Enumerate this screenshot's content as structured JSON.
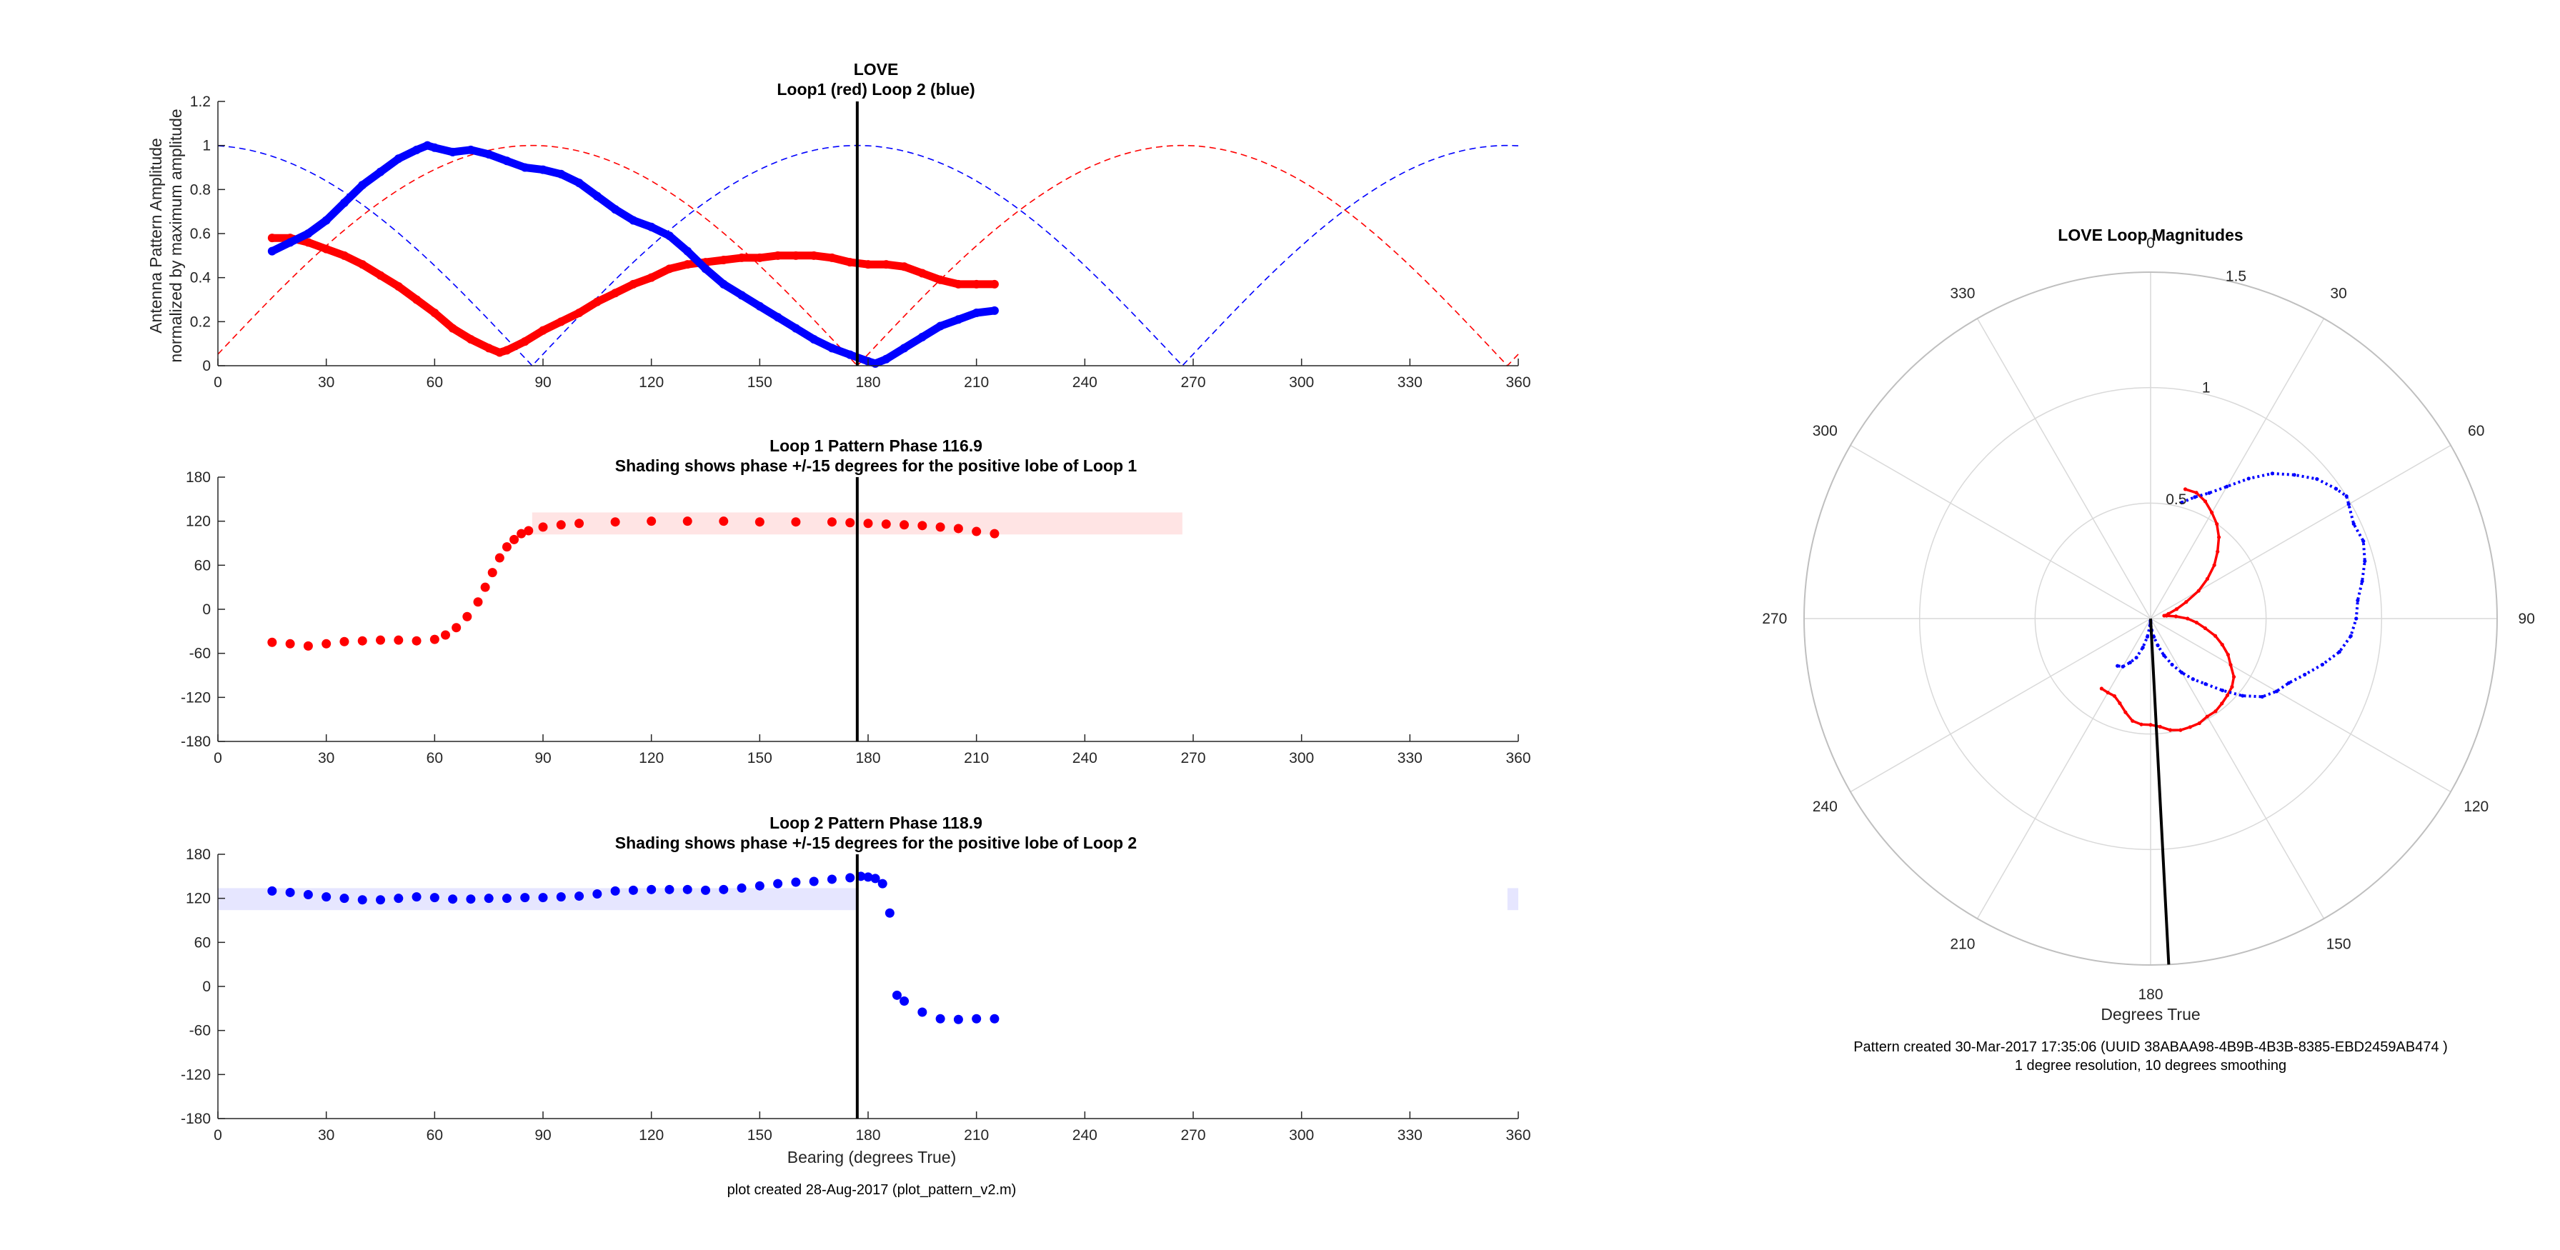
{
  "chart_data": [
    {
      "type": "line",
      "title": "LOVE",
      "subtitle": "Loop1 (red) Loop 2 (blue)",
      "ylabel": [
        "Antenna Pattern Amplitude",
        "normalized by maximum amplitude"
      ],
      "xlabel": "",
      "xlim": [
        0,
        360
      ],
      "ylim": [
        0,
        1.2
      ],
      "xticks": [
        "0",
        "30",
        "60",
        "90",
        "120",
        "150",
        "180",
        "210",
        "240",
        "270",
        "300",
        "330",
        "360"
      ],
      "yticks": [
        "0",
        "0.2",
        "0.4",
        "0.6",
        "0.8",
        "1",
        "1.2"
      ],
      "bearing_marker": 177,
      "ideal_series": [
        {
          "color": "#ff0000",
          "phase": 87
        },
        {
          "color": "#0000ff",
          "phase": 177
        }
      ],
      "series": [
        {
          "color": "#ff0000",
          "x": [
            15,
            20,
            25,
            30,
            35,
            40,
            45,
            50,
            55,
            60,
            65,
            70,
            75,
            78,
            80,
            85,
            90,
            95,
            100,
            105,
            110,
            115,
            120,
            125,
            130,
            135,
            140,
            145,
            150,
            155,
            160,
            165,
            170,
            175,
            180,
            185,
            190,
            195,
            200,
            205,
            210,
            215
          ],
          "y": [
            0.58,
            0.58,
            0.56,
            0.53,
            0.5,
            0.46,
            0.41,
            0.36,
            0.3,
            0.24,
            0.17,
            0.12,
            0.08,
            0.06,
            0.07,
            0.11,
            0.16,
            0.2,
            0.24,
            0.29,
            0.33,
            0.37,
            0.4,
            0.44,
            0.46,
            0.47,
            0.48,
            0.49,
            0.49,
            0.5,
            0.5,
            0.5,
            0.49,
            0.47,
            0.46,
            0.46,
            0.45,
            0.42,
            0.39,
            0.37,
            0.37,
            0.37
          ]
        },
        {
          "color": "#0000ff",
          "x": [
            15,
            20,
            25,
            30,
            35,
            40,
            45,
            50,
            55,
            58,
            60,
            65,
            70,
            75,
            80,
            85,
            90,
            95,
            100,
            105,
            110,
            115,
            120,
            125,
            130,
            135,
            140,
            145,
            150,
            155,
            160,
            165,
            170,
            175,
            180,
            182,
            185,
            190,
            195,
            200,
            205,
            210,
            215
          ],
          "y": [
            0.52,
            0.56,
            0.6,
            0.66,
            0.74,
            0.82,
            0.88,
            0.94,
            0.98,
            1.0,
            0.99,
            0.97,
            0.98,
            0.96,
            0.93,
            0.9,
            0.89,
            0.87,
            0.83,
            0.77,
            0.71,
            0.66,
            0.63,
            0.59,
            0.52,
            0.44,
            0.37,
            0.32,
            0.27,
            0.22,
            0.17,
            0.12,
            0.08,
            0.05,
            0.02,
            0.01,
            0.03,
            0.08,
            0.13,
            0.18,
            0.21,
            0.24,
            0.25
          ]
        }
      ]
    },
    {
      "type": "scatter",
      "title": "Loop 1 Pattern Phase 116.9",
      "subtitle": "Shading shows phase +/-15 degrees for the positive lobe of Loop 1",
      "xlim": [
        0,
        360
      ],
      "ylim": [
        -180,
        180
      ],
      "xticks": [
        "0",
        "30",
        "60",
        "90",
        "120",
        "150",
        "180",
        "210",
        "240",
        "270",
        "300",
        "330",
        "360"
      ],
      "yticks": [
        "-180",
        "-120",
        "-60",
        "0",
        "60",
        "120",
        "180"
      ],
      "bearing_marker": 177,
      "shading": {
        "color": "#ffe4e4",
        "x": [
          87,
          267
        ],
        "y": [
          101.9,
          131.9
        ]
      },
      "series": [
        {
          "color": "#ff0000",
          "x": [
            15,
            20,
            25,
            30,
            35,
            40,
            45,
            50,
            55,
            60,
            63,
            66,
            69,
            72,
            74,
            76,
            78,
            80,
            82,
            84,
            86,
            90,
            95,
            100,
            110,
            120,
            130,
            140,
            150,
            160,
            170,
            175,
            180,
            185,
            190,
            195,
            200,
            205,
            210,
            215
          ],
          "y": [
            -45,
            -47,
            -50,
            -47,
            -44,
            -43,
            -42,
            -42,
            -43,
            -41,
            -35,
            -25,
            -10,
            10,
            30,
            50,
            70,
            85,
            95,
            103,
            107,
            112,
            115,
            117,
            119,
            120,
            120,
            120,
            119,
            119,
            119,
            118,
            117,
            116,
            115,
            114,
            112,
            110,
            106,
            103
          ]
        }
      ]
    },
    {
      "type": "scatter",
      "title": "Loop 2 Pattern Phase 118.9",
      "subtitle": "Shading shows phase +/-15 degrees for the positive lobe of Loop 2",
      "xlabel": "Bearing (degrees True)",
      "xlim": [
        0,
        360
      ],
      "ylim": [
        -180,
        180
      ],
      "xticks": [
        "0",
        "30",
        "60",
        "90",
        "120",
        "150",
        "180",
        "210",
        "240",
        "270",
        "300",
        "330",
        "360"
      ],
      "yticks": [
        "-180",
        "-120",
        "-60",
        "0",
        "60",
        "120",
        "180"
      ],
      "bearing_marker": 177,
      "shading": [
        {
          "color": "#e6e6ff",
          "x": [
            0,
            177
          ],
          "y": [
            103.9,
            133.9
          ]
        },
        {
          "color": "#e6e6ff",
          "x": [
            357,
            360
          ],
          "y": [
            103.9,
            133.9
          ]
        }
      ],
      "series": [
        {
          "color": "#0000ff",
          "x": [
            15,
            20,
            25,
            30,
            35,
            40,
            45,
            50,
            55,
            60,
            65,
            70,
            75,
            80,
            85,
            90,
            95,
            100,
            105,
            110,
            115,
            120,
            125,
            130,
            135,
            140,
            145,
            150,
            155,
            160,
            165,
            170,
            175,
            178,
            180,
            182,
            184,
            186,
            188,
            190,
            195,
            200,
            205,
            210,
            215
          ],
          "y": [
            130,
            128,
            125,
            122,
            120,
            118,
            118,
            120,
            122,
            121,
            119,
            119,
            120,
            120,
            121,
            121,
            122,
            123,
            126,
            130,
            131,
            132,
            132,
            132,
            131,
            132,
            134,
            137,
            140,
            142,
            143,
            146,
            148,
            150,
            149,
            147,
            140,
            100,
            -12,
            -20,
            -35,
            -44,
            -45,
            -44,
            -44
          ]
        }
      ]
    },
    {
      "type": "polar",
      "title": "LOVE Loop Magnitudes",
      "xlabel": "Degrees True",
      "rlim": [
        0,
        1.5
      ],
      "rticks": [
        "0.5",
        "1",
        "1.5"
      ],
      "angle_ticks": [
        "0",
        "30",
        "60",
        "90",
        "120",
        "150",
        "180",
        "210",
        "240",
        "270",
        "300",
        "330"
      ],
      "bearing_marker": {
        "angle": 177,
        "r": 1.5
      },
      "series": [
        {
          "color": "#ff0000",
          "angle": [
            15,
            20,
            25,
            30,
            35,
            40,
            45,
            50,
            55,
            60,
            65,
            70,
            75,
            78,
            80,
            85,
            90,
            95,
            100,
            105,
            110,
            115,
            120,
            125,
            130,
            135,
            140,
            145,
            150,
            155,
            160,
            165,
            170,
            175,
            180,
            185,
            190,
            195,
            200,
            205,
            210,
            215
          ],
          "r": [
            0.58,
            0.58,
            0.56,
            0.53,
            0.5,
            0.46,
            0.41,
            0.36,
            0.3,
            0.24,
            0.17,
            0.12,
            0.08,
            0.06,
            0.07,
            0.11,
            0.16,
            0.2,
            0.24,
            0.29,
            0.33,
            0.37,
            0.4,
            0.44,
            0.46,
            0.47,
            0.48,
            0.49,
            0.49,
            0.5,
            0.5,
            0.5,
            0.49,
            0.47,
            0.46,
            0.46,
            0.45,
            0.42,
            0.39,
            0.37,
            0.37,
            0.37
          ]
        },
        {
          "color": "#0000ff",
          "angle": [
            15,
            20,
            25,
            30,
            35,
            40,
            45,
            50,
            55,
            58,
            60,
            65,
            70,
            75,
            80,
            85,
            90,
            95,
            100,
            105,
            110,
            115,
            120,
            125,
            130,
            135,
            140,
            145,
            150,
            155,
            160,
            165,
            170,
            175,
            180,
            182,
            185,
            190,
            195,
            200,
            205,
            210,
            215
          ],
          "r": [
            0.52,
            0.56,
            0.6,
            0.66,
            0.74,
            0.82,
            0.88,
            0.94,
            0.98,
            1.0,
            0.99,
            0.97,
            0.98,
            0.96,
            0.93,
            0.9,
            0.89,
            0.87,
            0.83,
            0.77,
            0.71,
            0.66,
            0.63,
            0.59,
            0.52,
            0.44,
            0.37,
            0.32,
            0.27,
            0.22,
            0.17,
            0.12,
            0.08,
            0.05,
            0.02,
            0.01,
            0.03,
            0.08,
            0.13,
            0.18,
            0.21,
            0.24,
            0.25
          ]
        }
      ]
    }
  ],
  "footer": {
    "left": "plot created 28-Aug-2017 (plot_pattern_v2.m)",
    "right_line1": "Pattern created 30-Mar-2017 17:35:06 (UUID 38ABAA98-4B9B-4B3B-8385-EBD2459AB474 )",
    "right_line2": "1 degree resolution, 10 degrees smoothing"
  }
}
